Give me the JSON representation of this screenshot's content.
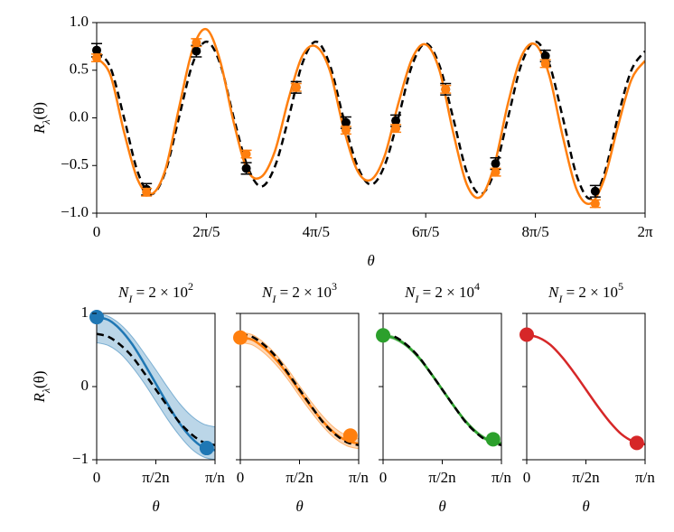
{
  "chart_data": [
    {
      "type": "line",
      "xlabel": "θ",
      "ylabel": {
        "base": "R",
        "sub": "λ",
        "rest": "(θ)"
      },
      "xlim": [
        0,
        6.2832
      ],
      "ylim": [
        -1,
        1
      ],
      "xticks": [
        0,
        {
          "value": 1.2566,
          "label": "2π/5"
        },
        {
          "value": 2.5133,
          "label": "4π/5"
        },
        {
          "value": 3.7699,
          "label": "6π/5"
        },
        {
          "value": 5.0265,
          "label": "8π/5"
        },
        {
          "value": 6.2832,
          "label": "2π"
        }
      ],
      "yticks": [
        {
          "value": -1,
          "label": "−1.0"
        },
        {
          "value": -0.5,
          "label": "−0.5"
        },
        {
          "value": 0,
          "label": "0.0"
        },
        {
          "value": 0.5,
          "label": "0.5"
        },
        {
          "value": 1,
          "label": "1.0"
        }
      ],
      "series": [
        {
          "style": "dashed",
          "color": "#000000",
          "x": [
            0,
            0.157,
            0.314,
            0.471,
            0.628,
            0.785,
            0.942,
            1.1,
            1.257,
            1.414,
            1.571,
            1.728,
            1.885,
            2.042,
            2.199,
            2.356,
            2.513,
            2.67,
            2.827,
            2.985,
            3.142,
            3.299,
            3.456,
            3.613,
            3.77,
            3.927,
            4.084,
            4.241,
            4.398,
            4.555,
            4.712,
            4.869,
            5.027,
            5.184,
            5.341,
            5.498,
            5.655,
            5.812,
            5.969,
            6.126,
            6.283
          ],
          "values": [
            0.7,
            0.53,
            0,
            -0.57,
            -0.8,
            -0.57,
            0,
            0.57,
            0.8,
            0.57,
            0,
            -0.51,
            -0.72,
            -0.51,
            0,
            0.57,
            0.8,
            0.56,
            0,
            -0.5,
            -0.7,
            -0.5,
            0,
            0.55,
            0.78,
            0.55,
            0,
            -0.57,
            -0.8,
            -0.57,
            0,
            0.57,
            0.8,
            0.57,
            0,
            -0.6,
            -0.85,
            -0.6,
            0,
            0.5,
            0.7
          ]
        },
        {
          "style": "solid",
          "color": "#ff7f0e",
          "x": [
            0,
            0.157,
            0.314,
            0.471,
            0.628,
            0.785,
            0.942,
            1.1,
            1.257,
            1.414,
            1.571,
            1.728,
            1.885,
            2.042,
            2.199,
            2.356,
            2.513,
            2.67,
            2.827,
            2.985,
            3.142,
            3.299,
            3.456,
            3.613,
            3.77,
            3.927,
            4.084,
            4.241,
            4.398,
            4.555,
            4.712,
            4.869,
            5.027,
            5.184,
            5.341,
            5.498,
            5.655,
            5.812,
            5.969,
            6.126,
            6.283
          ],
          "values": [
            0.63,
            0.45,
            -0.15,
            -0.65,
            -0.8,
            -0.55,
            0.1,
            0.72,
            0.93,
            0.6,
            -0.05,
            -0.55,
            -0.62,
            -0.35,
            0.2,
            0.65,
            0.75,
            0.5,
            -0.1,
            -0.55,
            -0.65,
            -0.4,
            0.15,
            0.62,
            0.77,
            0.5,
            -0.15,
            -0.7,
            -0.83,
            -0.5,
            0.15,
            0.65,
            0.77,
            0.45,
            -0.2,
            -0.75,
            -0.9,
            -0.65,
            -0.1,
            0.4,
            0.6
          ]
        },
        {
          "style": "points",
          "color": "#000000",
          "x": [
            0,
            0.571,
            1.142,
            1.714,
            2.285,
            2.856,
            3.427,
            3.998,
            4.57,
            5.141,
            5.712
          ],
          "values": [
            0.71,
            -0.75,
            0.7,
            -0.53,
            0.32,
            -0.05,
            -0.03,
            0.3,
            -0.48,
            0.65,
            -0.77
          ],
          "errors": [
            0.07,
            0.06,
            0.06,
            0.06,
            0.06,
            0.06,
            0.06,
            0.06,
            0.06,
            0.06,
            0.06
          ]
        },
        {
          "style": "points",
          "color": "#ff7f0e",
          "x": [
            0,
            0.571,
            1.142,
            1.714,
            2.285,
            2.856,
            3.427,
            3.998,
            4.57,
            5.141,
            5.712
          ],
          "values": [
            0.63,
            -0.78,
            0.79,
            -0.38,
            0.32,
            -0.13,
            -0.11,
            0.3,
            -0.57,
            0.57,
            -0.9
          ],
          "errors": [
            0.04,
            0.04,
            0.04,
            0.04,
            0.04,
            0.04,
            0.04,
            0.04,
            0.04,
            0.04,
            0.04
          ]
        }
      ]
    },
    {
      "type": "line",
      "title": {
        "base": "N",
        "sub": "I",
        "rest": " = 2 × 10",
        "sup": "2"
      },
      "xlabel": "θ",
      "ylabel": {
        "base": "R",
        "sub": "λ",
        "rest": "(θ)"
      },
      "xlim": [
        0,
        1
      ],
      "ylim": [
        -1,
        1
      ],
      "xticks": [
        0,
        {
          "value": 0.5,
          "label": "π/2n"
        },
        {
          "value": 1,
          "label": "π/n"
        }
      ],
      "yticks": [
        {
          "value": -1,
          "label": "−1"
        },
        0,
        1
      ],
      "series": [
        {
          "style": "solid",
          "color": "#1f77b4",
          "x": [
            0,
            0.1,
            0.2,
            0.3,
            0.4,
            0.5,
            0.6,
            0.7,
            0.8,
            0.9,
            1
          ],
          "values": [
            0.95,
            0.91,
            0.78,
            0.58,
            0.32,
            0.04,
            -0.24,
            -0.5,
            -0.7,
            -0.83,
            -0.87
          ],
          "upper": [
            1,
            0.96,
            0.85,
            0.68,
            0.46,
            0.23,
            -0.01,
            -0.23,
            -0.4,
            -0.51,
            -0.55
          ],
          "lower": [
            0.6,
            0.56,
            0.45,
            0.27,
            0.05,
            -0.2,
            -0.45,
            -0.67,
            -0.85,
            -0.96,
            -1
          ]
        },
        {
          "style": "dashed",
          "color": "#000000",
          "x": [
            0,
            0.1,
            0.2,
            0.3,
            0.4,
            0.5,
            0.6,
            0.7,
            0.8,
            0.9,
            1
          ],
          "values": [
            0.72,
            0.68,
            0.57,
            0.41,
            0.19,
            -0.04,
            -0.27,
            -0.49,
            -0.65,
            -0.76,
            -0.8
          ]
        },
        {
          "style": "dots",
          "color": "#1f77b4",
          "x": [
            0,
            0.93
          ],
          "values": [
            0.95,
            -0.84
          ]
        }
      ]
    },
    {
      "type": "line",
      "title": {
        "base": "N",
        "sub": "I",
        "rest": " = 2 × 10",
        "sup": "3"
      },
      "xlabel": "θ",
      "xlim": [
        0,
        1
      ],
      "ylim": [
        -1,
        1
      ],
      "sharey": true,
      "xticks": [
        0,
        {
          "value": 0.5,
          "label": "π/2n"
        },
        {
          "value": 1,
          "label": "π/n"
        }
      ],
      "series": [
        {
          "style": "solid",
          "color": "#ff7f0e",
          "x": [
            0,
            0.1,
            0.2,
            0.3,
            0.4,
            0.5,
            0.6,
            0.7,
            0.8,
            0.9,
            1
          ],
          "values": [
            0.67,
            0.64,
            0.53,
            0.37,
            0.17,
            -0.06,
            -0.28,
            -0.48,
            -0.64,
            -0.74,
            -0.78
          ],
          "upper": [
            0.74,
            0.71,
            0.6,
            0.44,
            0.24,
            0.01,
            -0.21,
            -0.41,
            -0.57,
            -0.67,
            -0.71
          ],
          "lower": [
            0.6,
            0.57,
            0.46,
            0.3,
            0.1,
            -0.13,
            -0.35,
            -0.55,
            -0.71,
            -0.81,
            -0.85
          ]
        },
        {
          "style": "dashed",
          "color": "#000000",
          "x": [
            0,
            0.1,
            0.2,
            0.3,
            0.4,
            0.5,
            0.6,
            0.7,
            0.8,
            0.9,
            1
          ],
          "values": [
            0.72,
            0.68,
            0.57,
            0.41,
            0.19,
            -0.04,
            -0.27,
            -0.49,
            -0.65,
            -0.76,
            -0.8
          ]
        },
        {
          "style": "dots",
          "color": "#ff7f0e",
          "x": [
            0,
            0.93
          ],
          "values": [
            0.67,
            -0.67
          ]
        }
      ]
    },
    {
      "type": "line",
      "title": {
        "base": "N",
        "sub": "I",
        "rest": " = 2 × 10",
        "sup": "4"
      },
      "xlabel": "θ",
      "xlim": [
        0,
        1
      ],
      "ylim": [
        -1,
        1
      ],
      "sharey": true,
      "xticks": [
        0,
        {
          "value": 0.5,
          "label": "π/2n"
        },
        {
          "value": 1,
          "label": "π/n"
        }
      ],
      "series": [
        {
          "style": "solid",
          "color": "#2ca02c",
          "x": [
            0,
            0.1,
            0.2,
            0.3,
            0.4,
            0.5,
            0.6,
            0.7,
            0.8,
            0.9,
            1
          ],
          "values": [
            0.7,
            0.66,
            0.56,
            0.4,
            0.19,
            -0.04,
            -0.27,
            -0.48,
            -0.64,
            -0.74,
            -0.78
          ],
          "upper": [
            0.72,
            0.68,
            0.58,
            0.42,
            0.21,
            -0.02,
            -0.25,
            -0.46,
            -0.62,
            -0.72,
            -0.76
          ],
          "lower": [
            0.68,
            0.64,
            0.54,
            0.38,
            0.17,
            -0.06,
            -0.29,
            -0.5,
            -0.66,
            -0.76,
            -0.8
          ]
        },
        {
          "style": "dashed",
          "color": "#000000",
          "x": [
            0,
            0.1,
            0.2,
            0.3,
            0.4,
            0.5,
            0.6,
            0.7,
            0.8,
            0.9,
            1
          ],
          "values": [
            0.72,
            0.68,
            0.57,
            0.41,
            0.19,
            -0.04,
            -0.27,
            -0.49,
            -0.65,
            -0.76,
            -0.8
          ]
        },
        {
          "style": "dots",
          "color": "#2ca02c",
          "x": [
            0,
            0.93
          ],
          "values": [
            0.7,
            -0.72
          ]
        }
      ]
    },
    {
      "type": "line",
      "title": {
        "base": "N",
        "sub": "I",
        "rest": " = 2 × 10",
        "sup": "5"
      },
      "xlabel": "θ",
      "xlim": [
        0,
        1
      ],
      "ylim": [
        -1,
        1
      ],
      "sharey": true,
      "xticks": [
        0,
        {
          "value": 0.5,
          "label": "π/2n"
        },
        {
          "value": 1,
          "label": "π/n"
        }
      ],
      "series": [
        {
          "style": "solid",
          "color": "#d62728",
          "x": [
            0,
            0.1,
            0.2,
            0.3,
            0.4,
            0.5,
            0.6,
            0.7,
            0.8,
            0.9,
            1
          ],
          "values": [
            0.71,
            0.67,
            0.57,
            0.4,
            0.19,
            -0.04,
            -0.27,
            -0.48,
            -0.65,
            -0.75,
            -0.79
          ]
        },
        {
          "style": "dots",
          "color": "#d62728",
          "x": [
            0,
            0.93
          ],
          "values": [
            0.71,
            -0.77
          ]
        }
      ]
    }
  ]
}
